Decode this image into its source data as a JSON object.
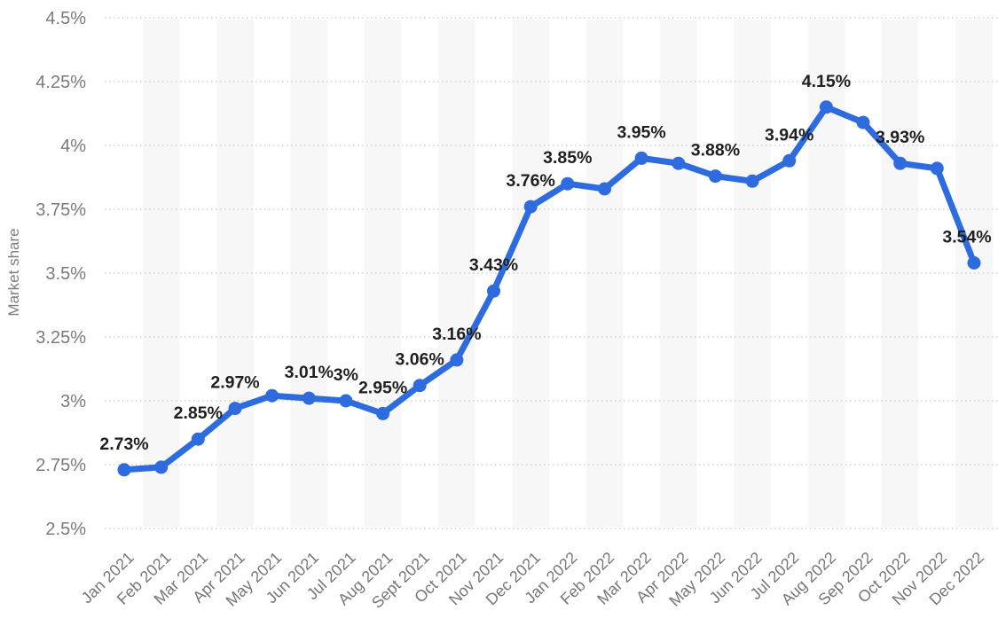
{
  "page": {
    "background": "#ffffff"
  },
  "chart_data": {
    "type": "line",
    "title": "",
    "ylabel": "Market share",
    "xlabel": "",
    "x_categories": [
      "Jan 2021",
      "Feb 2021",
      "Mar 2021",
      "Apr 2021",
      "May 2021",
      "Jun 2021",
      "Jul 2021",
      "Aug 2021",
      "Sept 2021",
      "Oct 2021",
      "Nov 2021",
      "Dec 2021",
      "Jan 2022",
      "Feb 2022",
      "Mar 2022",
      "Apr 2022",
      "May 2022",
      "Jun 2022",
      "Jul 2022",
      "Aug 2022",
      "Sep 2022",
      "Oct 2022",
      "Nov 2022",
      "Dec 2022"
    ],
    "series": [
      {
        "name": "Market share",
        "values": [
          2.73,
          2.74,
          2.85,
          2.97,
          3.02,
          3.01,
          3.0,
          2.95,
          3.06,
          3.16,
          3.43,
          3.76,
          3.85,
          3.83,
          3.95,
          3.93,
          3.88,
          3.86,
          3.94,
          4.15,
          4.09,
          3.93,
          3.91,
          3.54
        ],
        "point_labels": [
          "2.73%",
          "",
          "2.85%",
          "2.97%",
          "",
          "3.01%",
          "3%",
          "2.95%",
          "3.06%",
          "3.16%",
          "3.43%",
          "3.76%",
          "3.85%",
          "",
          "3.95%",
          "",
          "3.88%",
          "",
          "3.94%",
          "4.15%",
          "",
          "3.93%",
          "",
          "3.54%"
        ],
        "color": "#2e6bdf"
      }
    ],
    "y_ticks": [
      "4.5%",
      "4.25%",
      "4%",
      "3.75%",
      "3.5%",
      "3.25%",
      "3%",
      "2.75%",
      "2.5%"
    ],
    "y_tick_values": [
      4.5,
      4.25,
      4.0,
      3.75,
      3.5,
      3.25,
      3.0,
      2.75,
      2.5
    ],
    "ylim": [
      2.5,
      4.5
    ],
    "grid": "horizontal-dotted",
    "grid_color": "#c9c9c9",
    "band_fill": "#f7f7f7",
    "axis_text_color": "#7b7b7b",
    "data_label_color": "#1f1f1f",
    "legend": "none"
  }
}
